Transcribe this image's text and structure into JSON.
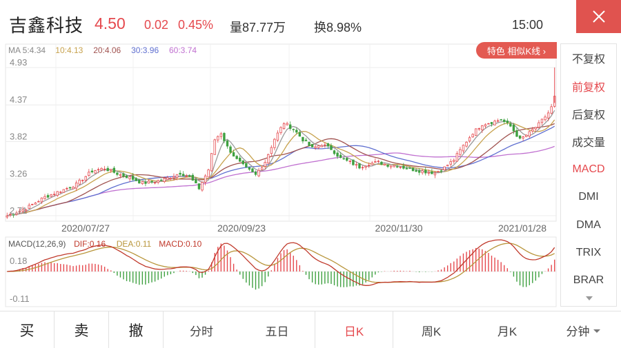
{
  "header": {
    "name": "吉鑫科技",
    "price": "4.50",
    "change": "0.02",
    "change_pct": "0.45%",
    "volume": "量87.77万",
    "turnover": "换8.98%",
    "time": "15:00"
  },
  "ma_legend": [
    {
      "text": "MA 5:4.34",
      "color": "#888888"
    },
    {
      "text": "10:4.13",
      "color": "#c7a24d"
    },
    {
      "text": "20:4.06",
      "color": "#a0524f"
    },
    {
      "text": "30:3.96",
      "color": "#5f6fd0"
    },
    {
      "text": "60:3.74",
      "color": "#c070d0"
    }
  ],
  "pill_label": "特色 相似K线 ›",
  "macd_legend": [
    {
      "text": "MACD(12,26,9)",
      "color": "#555555"
    },
    {
      "text": "DIF:0.16",
      "color": "#c0392b"
    },
    {
      "text": "DEA:0.11",
      "color": "#b8953a"
    },
    {
      "text": "MACD:0.10",
      "color": "#c0392b"
    }
  ],
  "price_ticks": [
    "4.93",
    "4.37",
    "3.82",
    "3.26",
    "2.71"
  ],
  "macd_ticks": [
    "0.18",
    "-0.11"
  ],
  "date_ticks": [
    "2020/07/27",
    "2020/09/23",
    "2020/11/30",
    "2021/01/28"
  ],
  "side_menu": [
    {
      "label": "不复权",
      "active": false
    },
    {
      "label": "前复权",
      "active": true
    },
    {
      "label": "后复权",
      "active": false
    },
    {
      "label": "成交量",
      "active": false
    },
    {
      "label": "MACD",
      "active": true
    },
    {
      "label": "DMI",
      "active": false
    },
    {
      "label": "DMA",
      "active": false
    },
    {
      "label": "TRIX",
      "active": false
    },
    {
      "label": "BRAR",
      "active": false
    }
  ],
  "bottom_tabs": [
    {
      "label": "买",
      "type": "action"
    },
    {
      "label": "卖",
      "type": "action"
    },
    {
      "label": "撤",
      "type": "action"
    },
    {
      "label": "分时",
      "type": "tab"
    },
    {
      "label": "五日",
      "type": "tab"
    },
    {
      "label": "日K",
      "type": "tab",
      "active": true
    },
    {
      "label": "周K",
      "type": "tab"
    },
    {
      "label": "月K",
      "type": "tab"
    },
    {
      "label": "分钟",
      "type": "tab",
      "dropdown": true
    }
  ],
  "colors": {
    "up": "#e5484d",
    "down": "#3ea040",
    "accent": "#e0534f"
  },
  "chart_data": {
    "type": "candlestick",
    "price_axis": {
      "min": 2.71,
      "max": 4.93,
      "ticks": [
        4.93,
        4.37,
        3.82,
        3.26,
        2.71
      ]
    },
    "macd_axis": {
      "ticks": [
        0.18,
        -0.11
      ]
    },
    "dates": [
      "2020/07/27",
      "2020/09/23",
      "2020/11/30",
      "2021/01/28"
    ],
    "last": {
      "close": 4.5,
      "change": 0.02,
      "change_pct": 0.45
    },
    "ma": {
      "MA5": 4.34,
      "MA10": 4.13,
      "MA20": 4.06,
      "MA30": 3.96,
      "MA60": 3.74
    },
    "macd": {
      "DIF": 0.16,
      "DEA": 0.11,
      "MACD": 0.1
    },
    "price_path": [
      [
        0,
        2.71
      ],
      [
        6,
        2.82
      ],
      [
        12,
        2.99
      ],
      [
        18,
        3.1
      ],
      [
        22,
        3.18
      ],
      [
        27,
        3.38
      ],
      [
        31,
        3.42
      ],
      [
        35,
        3.34
      ],
      [
        39,
        3.28
      ],
      [
        43,
        3.2
      ],
      [
        47,
        3.22
      ],
      [
        51,
        3.27
      ],
      [
        55,
        3.35
      ],
      [
        58,
        3.29
      ],
      [
        61,
        3.12
      ],
      [
        64,
        3.4
      ],
      [
        66,
        3.85
      ],
      [
        68,
        3.95
      ],
      [
        70,
        3.74
      ],
      [
        73,
        3.55
      ],
      [
        76,
        3.42
      ],
      [
        79,
        3.32
      ],
      [
        82,
        3.52
      ],
      [
        85,
        3.86
      ],
      [
        88,
        4.1
      ],
      [
        91,
        4.01
      ],
      [
        94,
        3.85
      ],
      [
        97,
        3.72
      ],
      [
        100,
        3.78
      ],
      [
        103,
        3.71
      ],
      [
        106,
        3.57
      ],
      [
        109,
        3.51
      ],
      [
        112,
        3.44
      ],
      [
        115,
        3.49
      ],
      [
        118,
        3.51
      ],
      [
        121,
        3.47
      ],
      [
        124,
        3.46
      ],
      [
        127,
        3.42
      ],
      [
        130,
        3.39
      ],
      [
        133,
        3.37
      ],
      [
        136,
        3.35
      ],
      [
        139,
        3.43
      ],
      [
        142,
        3.55
      ],
      [
        145,
        3.76
      ],
      [
        148,
        3.95
      ],
      [
        151,
        4.08
      ],
      [
        154,
        4.11
      ],
      [
        157,
        4.15
      ],
      [
        160,
        4.05
      ],
      [
        163,
        3.85
      ],
      [
        166,
        3.95
      ],
      [
        169,
        4.08
      ],
      [
        172,
        4.25
      ],
      [
        175,
        4.5
      ]
    ]
  }
}
